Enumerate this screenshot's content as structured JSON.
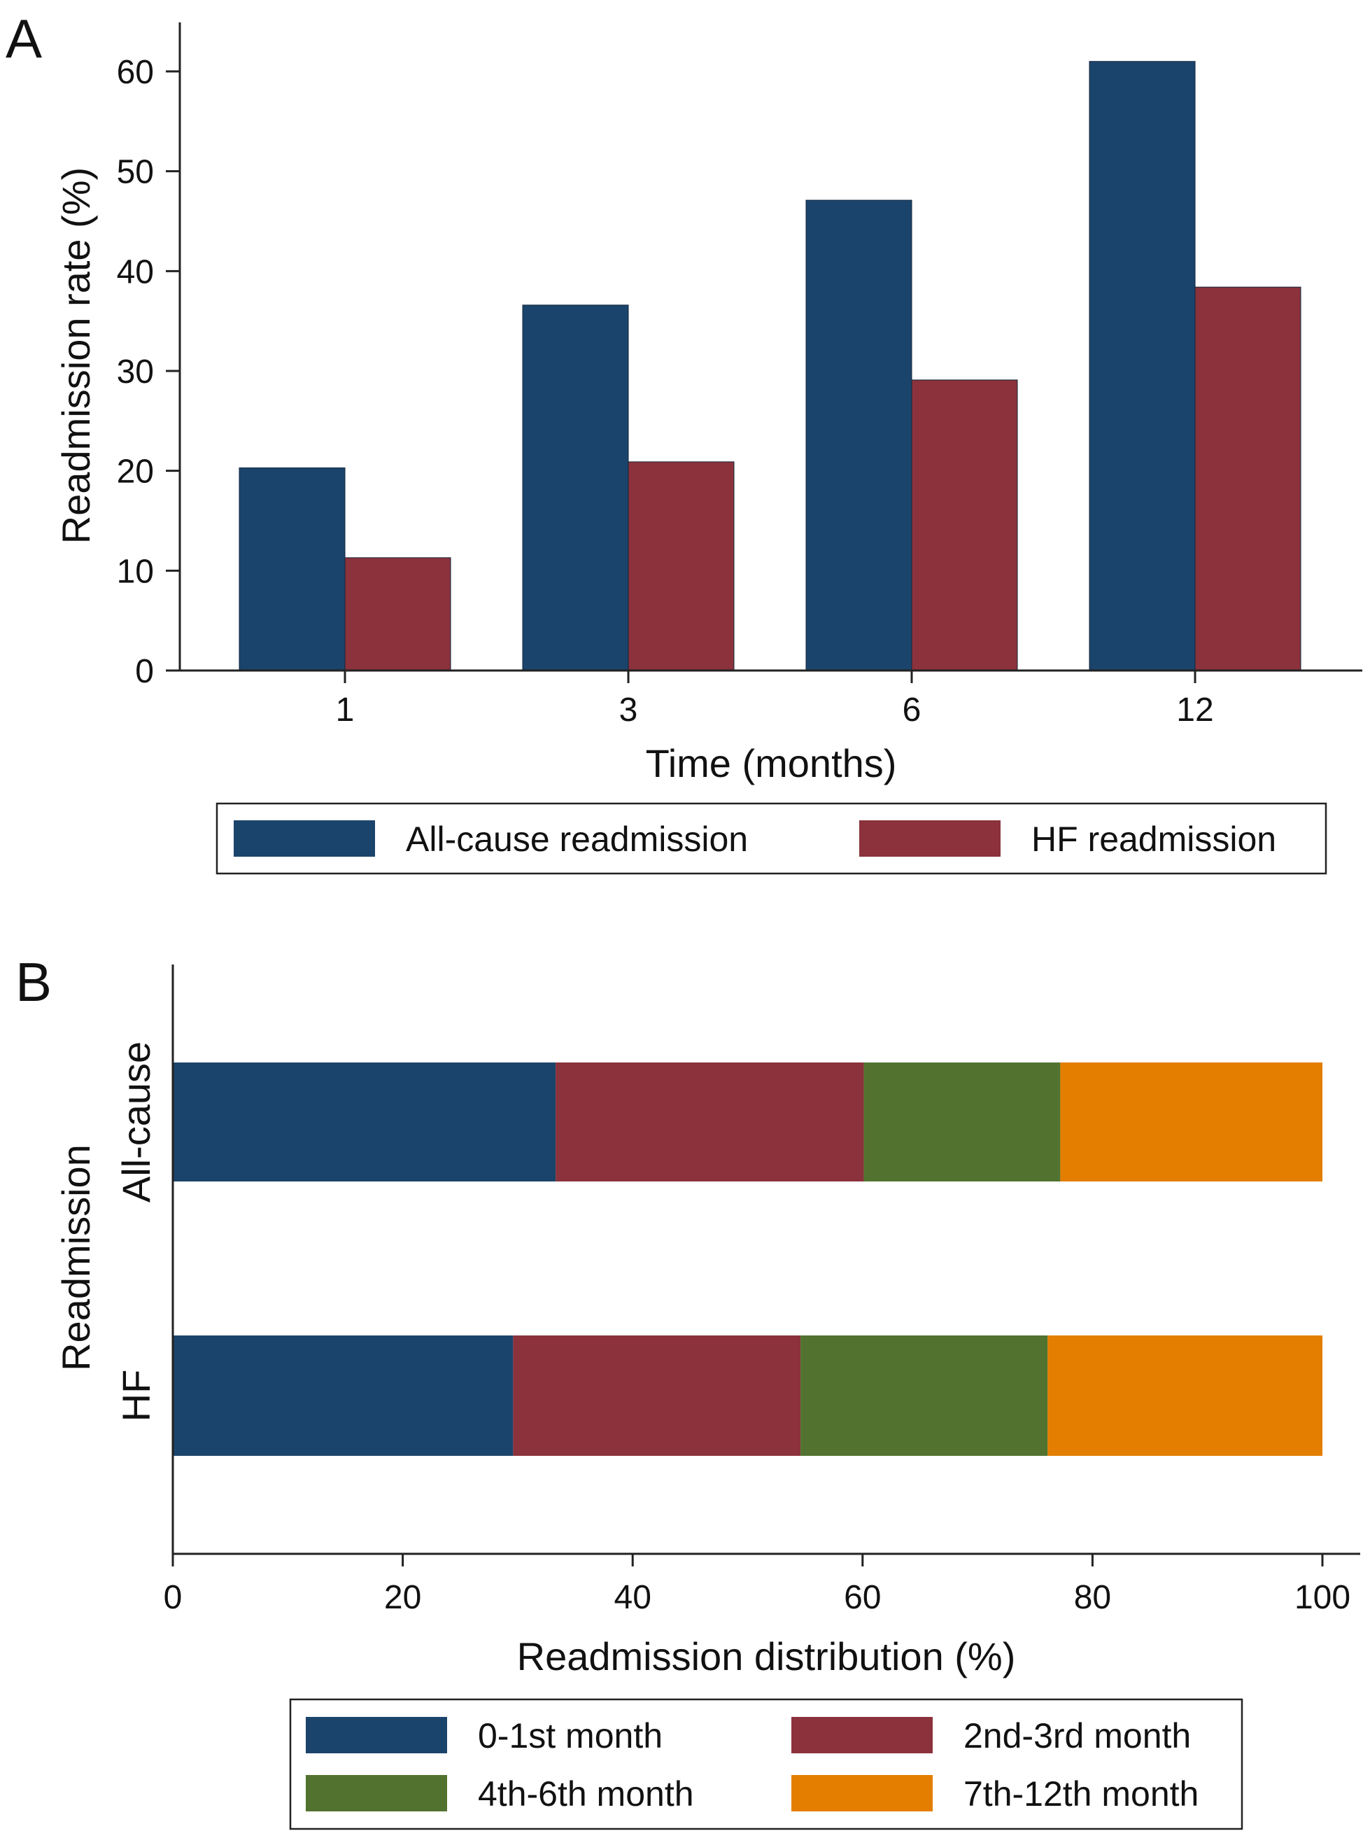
{
  "chart_data": [
    {
      "panel": "A",
      "type": "bar",
      "title": "",
      "xlabel": "Time (months)",
      "ylabel": "Readmission rate (%)",
      "categories": [
        "1",
        "3",
        "6",
        "12"
      ],
      "yticks": [
        0,
        10,
        20,
        30,
        40,
        50,
        60
      ],
      "ylim": [
        0,
        65
      ],
      "grid": false,
      "legend_position": "bottom",
      "series": [
        {
          "name": "All-cause readmission",
          "values": [
            20.3,
            36.6,
            47.1,
            61.0
          ],
          "color": "#1b446c"
        },
        {
          "name": "HF readmission",
          "values": [
            11.3,
            20.9,
            29.1,
            38.4
          ],
          "color": "#8b323c"
        }
      ]
    },
    {
      "panel": "B",
      "type": "bar",
      "orientation": "horizontal",
      "stacked": true,
      "title": "",
      "xlabel": "Readmission distribution (%)",
      "ylabel": "Readmission",
      "categories": [
        "All-cause",
        "HF"
      ],
      "xticks": [
        0,
        20,
        40,
        60,
        80,
        100
      ],
      "xlim": [
        0,
        103
      ],
      "grid": false,
      "legend_position": "bottom",
      "series": [
        {
          "name": "0-1st month",
          "values": [
            33.3,
            29.6
          ],
          "color": "#1b446c"
        },
        {
          "name": "2nd-3rd month",
          "values": [
            26.8,
            25.0
          ],
          "color": "#8b323c"
        },
        {
          "name": "4th-6th month",
          "values": [
            17.1,
            21.5
          ],
          "color": "#52732f"
        },
        {
          "name": "7th-12th month",
          "values": [
            22.8,
            23.9
          ],
          "color": "#e37e00"
        }
      ]
    }
  ]
}
